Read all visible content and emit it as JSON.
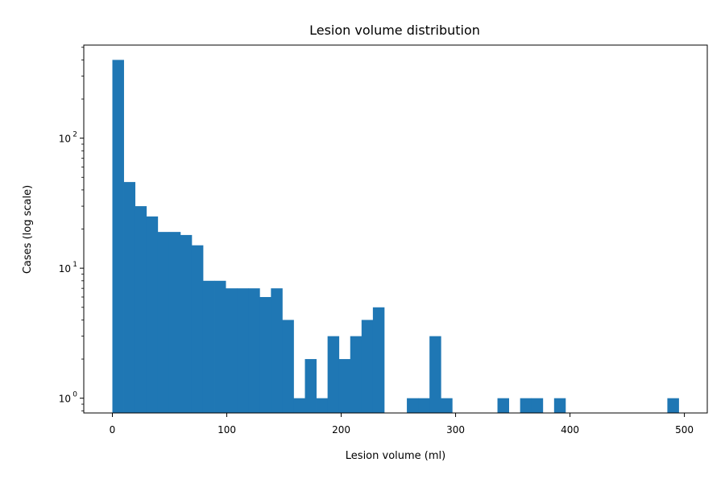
{
  "chart_data": {
    "type": "bar",
    "title": "Lesion volume distribution",
    "xlabel": "Lesion volume (ml)",
    "ylabel": "Cases (log scale)",
    "y_scale": "log",
    "xlim": [
      -25,
      520
    ],
    "ylim": [
      0.77,
      520
    ],
    "x_ticks": [
      0,
      100,
      200,
      300,
      400,
      500
    ],
    "y_ticks": [
      {
        "value": 1,
        "base": "10",
        "exp": "0"
      },
      {
        "value": 10,
        "base": "10",
        "exp": "1"
      },
      {
        "value": 100,
        "base": "10",
        "exp": "2"
      }
    ],
    "bin_width": 9.9,
    "bin_start": 0,
    "bar_color": "#1f77b4",
    "counts": [
      400,
      46,
      30,
      25,
      19,
      19,
      18,
      15,
      8,
      8,
      7,
      7,
      7,
      6,
      7,
      4,
      1,
      2,
      1,
      3,
      2,
      3,
      4,
      5,
      0,
      0,
      1,
      1,
      3,
      1,
      0,
      0,
      0,
      0,
      1,
      0,
      1,
      1,
      0,
      1,
      0,
      0,
      0,
      0,
      0,
      0,
      0,
      0,
      0,
      1
    ],
    "grid": false,
    "legend": "none"
  }
}
